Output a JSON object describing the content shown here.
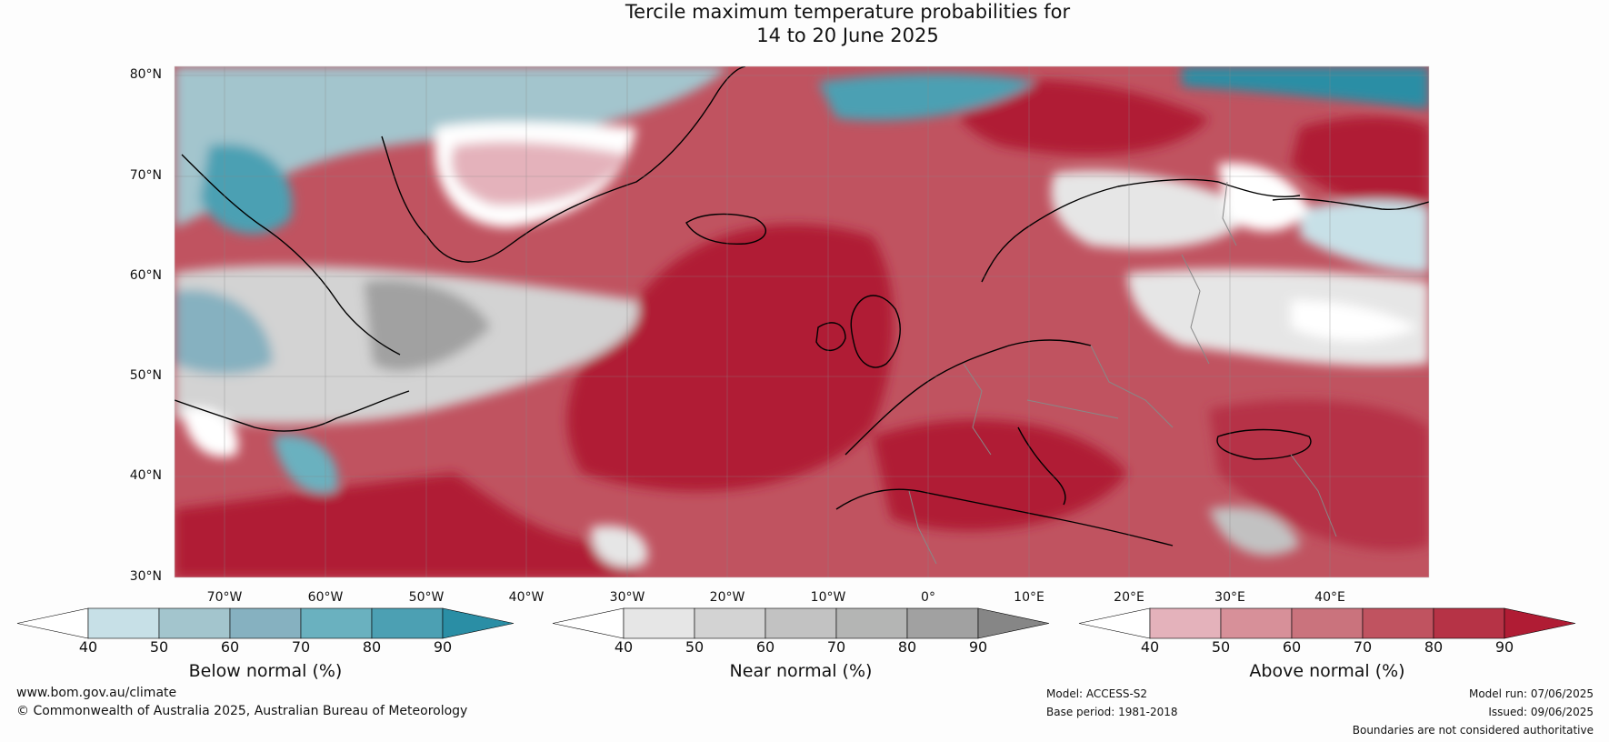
{
  "title": {
    "line1": "Tercile maximum temperature probabilities for",
    "line2": "14 to 20 June 2025"
  },
  "map": {
    "latitude_labels": [
      "80°N",
      "70°N",
      "60°N",
      "50°N",
      "40°N",
      "30°N"
    ],
    "longitude_labels": [
      "70°W",
      "60°W",
      "50°W",
      "40°W",
      "30°W",
      "20°W",
      "10°W",
      "0°",
      "10°E",
      "20°E",
      "30°E",
      "40°E"
    ],
    "lat_range": [
      30,
      81
    ],
    "lon_range": [
      -75,
      50
    ]
  },
  "colorbars": [
    {
      "title": "Below normal (%)",
      "ticks": [
        "40",
        "50",
        "60",
        "70",
        "80",
        "90"
      ],
      "colors": [
        "#c7e0e7",
        "#a3c5cd",
        "#86b1c0",
        "#6ab1bf",
        "#4ca0b3",
        "#2a8ea5"
      ],
      "under_color": "#ffffff"
    },
    {
      "title": "Near normal (%)",
      "ticks": [
        "40",
        "50",
        "60",
        "70",
        "80",
        "90"
      ],
      "colors": [
        "#e6e6e6",
        "#d3d3d3",
        "#c2c2c2",
        "#b4b5b4",
        "#a1a1a1",
        "#868686"
      ],
      "under_color": "#ffffff"
    },
    {
      "title": "Above normal (%)",
      "ticks": [
        "40",
        "50",
        "60",
        "70",
        "80",
        "90"
      ],
      "colors": [
        "#e4b2bb",
        "#d79099",
        "#ca737d",
        "#c05360",
        "#b63346",
        "#b01c34"
      ],
      "under_color": "#ffffff"
    }
  ],
  "footer": {
    "website": "www.bom.gov.au/climate",
    "copyright": "© Commonwealth of Australia 2025, Australian Bureau of Meteorology",
    "model": "Model: ACCESS-S2",
    "base_period": "Base period: 1981-2018",
    "model_run": "Model run: 07/06/2025",
    "issued": "Issued: 09/06/2025",
    "disclaimer": "Boundaries are not considered authoritative"
  }
}
